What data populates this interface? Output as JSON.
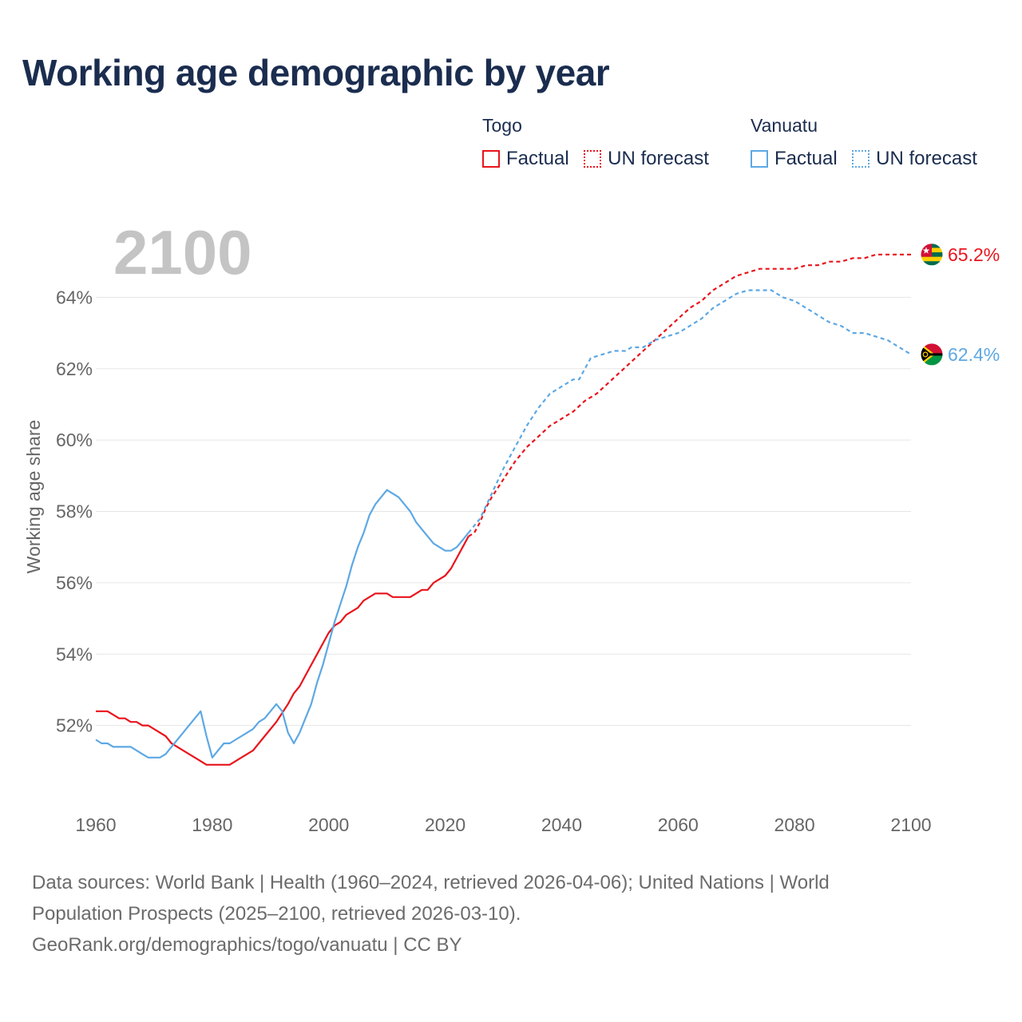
{
  "title": "Working age demographic by year",
  "legend": {
    "togo": {
      "name": "Togo",
      "factual": "Factual",
      "forecast": "UN forecast"
    },
    "vanuatu": {
      "name": "Vanuatu",
      "factual": "Factual",
      "forecast": "UN forecast"
    }
  },
  "footer": {
    "line1": "Data sources: World Bank | Health (1960–2024, retrieved 2026-04-06); United Nations | World",
    "line2": "Population Prospects (2025–2100, retrieved 2026-03-10).",
    "line3": "GeoRank.org/demographics/togo/vanuatu | CC BY"
  },
  "colors": {
    "togo": "#e8141c",
    "vanuatu": "#5da8e4",
    "grid": "#e6e6e6",
    "axis_text": "#666666",
    "year_watermark": "#c4c4c4"
  },
  "chart_data": {
    "type": "line",
    "title": "Working age demographic by year",
    "ylabel": "Working age share",
    "xlabel": "",
    "xlim": [
      1960,
      2100
    ],
    "ylim": [
      50.0,
      65.8
    ],
    "xticks": [
      1960,
      1980,
      2000,
      2020,
      2040,
      2060,
      2080,
      2100
    ],
    "yticks": [
      52,
      54,
      56,
      58,
      60,
      62,
      64
    ],
    "ytick_labels": [
      "52%",
      "54%",
      "56%",
      "58%",
      "60%",
      "62%",
      "64%"
    ],
    "year_label": "2100",
    "end_labels": {
      "togo": "65.2%",
      "vanuatu": "62.4%"
    },
    "series": [
      {
        "name": "Togo",
        "kind": "factual",
        "color": "#e8141c",
        "points": [
          [
            1960,
            52.4
          ],
          [
            1962,
            52.4
          ],
          [
            1964,
            52.2
          ],
          [
            1965,
            52.2
          ],
          [
            1966,
            52.1
          ],
          [
            1967,
            52.1
          ],
          [
            1968,
            52.0
          ],
          [
            1969,
            52.0
          ],
          [
            1970,
            51.9
          ],
          [
            1972,
            51.7
          ],
          [
            1973,
            51.5
          ],
          [
            1975,
            51.3
          ],
          [
            1977,
            51.1
          ],
          [
            1979,
            50.9
          ],
          [
            1983,
            50.9
          ],
          [
            1985,
            51.1
          ],
          [
            1987,
            51.3
          ],
          [
            1989,
            51.7
          ],
          [
            1991,
            52.1
          ],
          [
            1993,
            52.6
          ],
          [
            1994,
            52.9
          ],
          [
            1995,
            53.1
          ],
          [
            1996,
            53.4
          ],
          [
            1998,
            54.0
          ],
          [
            2000,
            54.6
          ],
          [
            2001,
            54.8
          ],
          [
            2002,
            54.9
          ],
          [
            2003,
            55.1
          ],
          [
            2005,
            55.3
          ],
          [
            2006,
            55.5
          ],
          [
            2008,
            55.7
          ],
          [
            2010,
            55.7
          ],
          [
            2011,
            55.6
          ],
          [
            2014,
            55.6
          ],
          [
            2016,
            55.8
          ],
          [
            2017,
            55.8
          ],
          [
            2018,
            56.0
          ],
          [
            2020,
            56.2
          ],
          [
            2021,
            56.4
          ],
          [
            2022,
            56.7
          ],
          [
            2023,
            57.0
          ],
          [
            2024,
            57.3
          ]
        ]
      },
      {
        "name": "Togo",
        "kind": "forecast",
        "color": "#e8141c",
        "points": [
          [
            2024,
            57.3
          ],
          [
            2025,
            57.4
          ],
          [
            2026,
            57.7
          ],
          [
            2027,
            58.1
          ],
          [
            2028,
            58.4
          ],
          [
            2030,
            58.9
          ],
          [
            2032,
            59.4
          ],
          [
            2034,
            59.8
          ],
          [
            2036,
            60.1
          ],
          [
            2038,
            60.4
          ],
          [
            2040,
            60.6
          ],
          [
            2042,
            60.8
          ],
          [
            2044,
            61.1
          ],
          [
            2046,
            61.3
          ],
          [
            2048,
            61.6
          ],
          [
            2050,
            61.9
          ],
          [
            2052,
            62.2
          ],
          [
            2054,
            62.5
          ],
          [
            2056,
            62.8
          ],
          [
            2058,
            63.1
          ],
          [
            2060,
            63.4
          ],
          [
            2062,
            63.7
          ],
          [
            2064,
            63.9
          ],
          [
            2066,
            64.2
          ],
          [
            2068,
            64.4
          ],
          [
            2070,
            64.6
          ],
          [
            2072,
            64.7
          ],
          [
            2074,
            64.8
          ],
          [
            2080,
            64.8
          ],
          [
            2082,
            64.9
          ],
          [
            2084,
            64.9
          ],
          [
            2086,
            65.0
          ],
          [
            2088,
            65.0
          ],
          [
            2090,
            65.1
          ],
          [
            2092,
            65.1
          ],
          [
            2094,
            65.2
          ],
          [
            2100,
            65.2
          ]
        ]
      },
      {
        "name": "Vanuatu",
        "kind": "factual",
        "color": "#5da8e4",
        "points": [
          [
            1960,
            51.6
          ],
          [
            1961,
            51.5
          ],
          [
            1962,
            51.5
          ],
          [
            1963,
            51.4
          ],
          [
            1966,
            51.4
          ],
          [
            1967,
            51.3
          ],
          [
            1968,
            51.2
          ],
          [
            1969,
            51.1
          ],
          [
            1971,
            51.1
          ],
          [
            1972,
            51.2
          ],
          [
            1973,
            51.4
          ],
          [
            1974,
            51.6
          ],
          [
            1975,
            51.8
          ],
          [
            1976,
            52.0
          ],
          [
            1977,
            52.2
          ],
          [
            1978,
            52.4
          ],
          [
            1979,
            51.7
          ],
          [
            1980,
            51.1
          ],
          [
            1981,
            51.3
          ],
          [
            1982,
            51.5
          ],
          [
            1983,
            51.5
          ],
          [
            1984,
            51.6
          ],
          [
            1986,
            51.8
          ],
          [
            1987,
            51.9
          ],
          [
            1988,
            52.1
          ],
          [
            1989,
            52.2
          ],
          [
            1990,
            52.4
          ],
          [
            1991,
            52.6
          ],
          [
            1992,
            52.4
          ],
          [
            1993,
            51.8
          ],
          [
            1994,
            51.5
          ],
          [
            1995,
            51.8
          ],
          [
            1996,
            52.2
          ],
          [
            1997,
            52.6
          ],
          [
            1998,
            53.2
          ],
          [
            1999,
            53.7
          ],
          [
            2000,
            54.3
          ],
          [
            2001,
            54.9
          ],
          [
            2002,
            55.4
          ],
          [
            2003,
            55.9
          ],
          [
            2004,
            56.5
          ],
          [
            2005,
            57.0
          ],
          [
            2006,
            57.4
          ],
          [
            2007,
            57.9
          ],
          [
            2008,
            58.2
          ],
          [
            2009,
            58.4
          ],
          [
            2010,
            58.6
          ],
          [
            2011,
            58.5
          ],
          [
            2012,
            58.4
          ],
          [
            2013,
            58.2
          ],
          [
            2014,
            58.0
          ],
          [
            2015,
            57.7
          ],
          [
            2016,
            57.5
          ],
          [
            2017,
            57.3
          ],
          [
            2018,
            57.1
          ],
          [
            2019,
            57.0
          ],
          [
            2020,
            56.9
          ],
          [
            2021,
            56.9
          ],
          [
            2022,
            57.0
          ],
          [
            2023,
            57.2
          ],
          [
            2024,
            57.4
          ]
        ]
      },
      {
        "name": "Vanuatu",
        "kind": "forecast",
        "color": "#5da8e4",
        "points": [
          [
            2024,
            57.4
          ],
          [
            2026,
            57.8
          ],
          [
            2028,
            58.5
          ],
          [
            2030,
            59.2
          ],
          [
            2032,
            59.8
          ],
          [
            2034,
            60.4
          ],
          [
            2036,
            60.9
          ],
          [
            2038,
            61.3
          ],
          [
            2040,
            61.5
          ],
          [
            2042,
            61.7
          ],
          [
            2043,
            61.7
          ],
          [
            2045,
            62.3
          ],
          [
            2047,
            62.4
          ],
          [
            2049,
            62.5
          ],
          [
            2051,
            62.5
          ],
          [
            2052,
            62.6
          ],
          [
            2054,
            62.6
          ],
          [
            2056,
            62.8
          ],
          [
            2058,
            62.9
          ],
          [
            2060,
            63.0
          ],
          [
            2062,
            63.2
          ],
          [
            2064,
            63.4
          ],
          [
            2066,
            63.7
          ],
          [
            2068,
            63.9
          ],
          [
            2070,
            64.1
          ],
          [
            2072,
            64.2
          ],
          [
            2076,
            64.2
          ],
          [
            2078,
            64.0
          ],
          [
            2080,
            63.9
          ],
          [
            2082,
            63.7
          ],
          [
            2084,
            63.5
          ],
          [
            2086,
            63.3
          ],
          [
            2088,
            63.2
          ],
          [
            2090,
            63.0
          ],
          [
            2092,
            63.0
          ],
          [
            2094,
            62.9
          ],
          [
            2096,
            62.8
          ],
          [
            2098,
            62.6
          ],
          [
            2100,
            62.4
          ]
        ]
      }
    ]
  }
}
